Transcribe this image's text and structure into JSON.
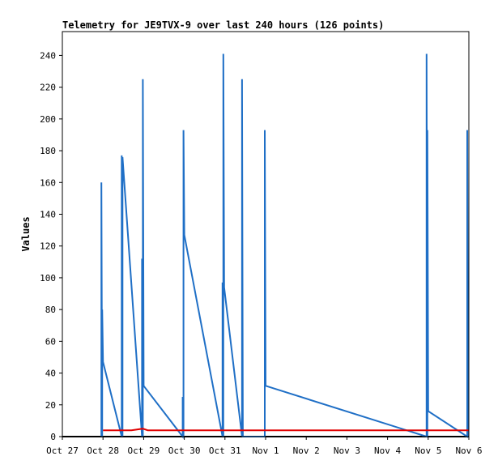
{
  "chart_data": {
    "type": "line",
    "title": "Telemetry for JE9TVX-9 over last 240 hours (126 points)",
    "xlabel": "",
    "ylabel": "Values",
    "x_ticks": [
      "Oct 27",
      "Oct 28",
      "Oct 29",
      "Oct 30",
      "Oct 31",
      "Nov 1",
      "Nov 2",
      "Nov 3",
      "Nov 4",
      "Nov 5",
      "Nov 6"
    ],
    "x_tick_values": [
      0,
      1,
      2,
      3,
      4,
      5,
      6,
      7,
      8,
      9,
      10
    ],
    "xlim": [
      0,
      10
    ],
    "y_ticks": [
      0,
      20,
      40,
      60,
      80,
      100,
      120,
      140,
      160,
      180,
      200,
      220,
      240
    ],
    "ylim": [
      0,
      255
    ],
    "grid": false,
    "legend": "none",
    "colors": {
      "blue": "#1f6fc6",
      "red": "#e00000",
      "baseline": "#000000",
      "frame": "#000000"
    },
    "series": [
      {
        "color": "#1f6fc6",
        "x": [
          0.96,
          0.96,
          0.98,
          0.98,
          1.0,
          1.46,
          1.46,
          1.48,
          1.48,
          1.96,
          1.96,
          1.98,
          1.98,
          2.0,
          2.96,
          2.96,
          2.98,
          2.98,
          3.0,
          3.94,
          3.94,
          3.96,
          3.96,
          3.98,
          4.42,
          4.42,
          4.44,
          4.98,
          4.98,
          5.0,
          8.96,
          8.96,
          8.98,
          8.98,
          9.0,
          9.96,
          9.96,
          9.98
        ],
        "y": [
          0,
          160,
          0,
          80,
          47,
          0,
          177,
          0,
          176,
          0,
          112,
          0,
          225,
          32,
          0,
          25,
          0,
          193,
          127,
          0,
          97,
          0,
          241,
          94,
          0,
          225,
          0,
          0,
          193,
          32,
          0,
          241,
          0,
          193,
          16,
          0,
          193,
          0
        ]
      },
      {
        "color": "#e00000",
        "x": [
          1.0,
          1.7,
          1.98,
          2.1,
          10.0
        ],
        "y": [
          4,
          4,
          5,
          4,
          4
        ]
      }
    ]
  }
}
